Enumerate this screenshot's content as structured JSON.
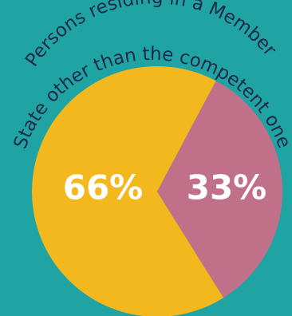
{
  "colors": {
    "background": "#1fa3a3",
    "text": "#1d2a4a",
    "slice_large": "#f2b81e",
    "slice_small": "#c07088"
  },
  "chart_data": {
    "type": "pie",
    "title_lines": [
      "Persons residing in a Member",
      "State other than the competent one"
    ],
    "slices": [
      {
        "value": 66,
        "label": "66%",
        "color": "#f2b81e"
      },
      {
        "value": 33,
        "label": "33%",
        "color": "#c07088"
      }
    ]
  }
}
